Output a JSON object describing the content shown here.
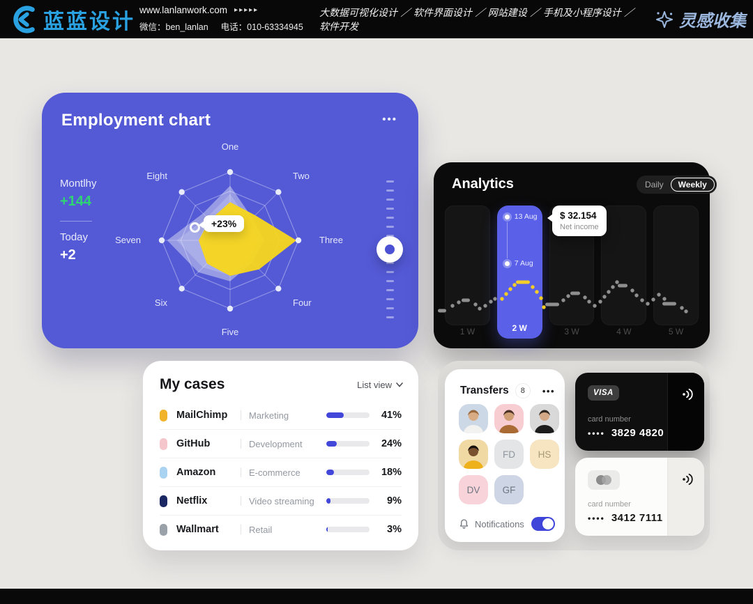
{
  "header": {
    "logo": "蓝蓝设计",
    "website": "www.lanlanwork.com",
    "wechat": "微信：ben_lanlan",
    "phone": "电话：010-63334945",
    "services": "大数据可视化设计 ／ 软件界面设计 ／ 网站建设 ／ 手机及小程序设计 ／ 软件开发",
    "collection": "灵感收集"
  },
  "icons": {
    "menu_dots": "•••",
    "arrows": "▸▸▸▸▸"
  },
  "colors": {
    "employment_card": "#545ad6",
    "accent_blue": "#4247da",
    "highlight_column": "#5a60e8",
    "yellow": "#f6d51f",
    "green": "#2fd573",
    "logo_blue": "#2aa2e2"
  },
  "employment": {
    "title": "Employment chart",
    "stats": [
      {
        "label": "Montlhy",
        "value": "+144",
        "value_color": "#2fd573"
      },
      {
        "label": "Today",
        "value": "+2",
        "value_color": "#ffffff"
      }
    ],
    "tooltip": "+23%"
  },
  "analytics": {
    "title": "Analytics",
    "toggle": {
      "options": [
        "Daily",
        "Weekly"
      ],
      "selected": "Weekly"
    },
    "tooltip": {
      "value": "$ 32.154",
      "label": "Net income"
    },
    "markers": [
      "13 Aug",
      "7 Aug"
    ],
    "weeks": [
      "1 W",
      "2 W",
      "3 W",
      "4 W",
      "5 W"
    ],
    "selected_week": "2 W"
  },
  "my_cases": {
    "title": "My cases",
    "view_label": "List view",
    "rows": [
      {
        "name": "MailChimp",
        "category": "Marketing",
        "percent": 41,
        "icon_color": "#f0b32a"
      },
      {
        "name": "GitHub",
        "category": "Development",
        "percent": 24,
        "icon_color": "#f5c7cd"
      },
      {
        "name": "Amazon",
        "category": "E-commerce",
        "percent": 18,
        "icon_color": "#a9d3f1"
      },
      {
        "name": "Netflix",
        "category": "Video streaming",
        "percent": 9,
        "icon_color": "#1b2762"
      },
      {
        "name": "Wallmart",
        "category": "Retail",
        "percent": 3,
        "icon_color": "#9aa1a9"
      }
    ]
  },
  "transfers": {
    "title": "Transfers",
    "badge": "8",
    "avatars": [
      {
        "type": "photo",
        "bg": "#cdd8e6",
        "hair": "#9a6a3f",
        "shirt": "#f2f2f0",
        "skin": "#d8ac85"
      },
      {
        "type": "photo",
        "bg": "#f7cdd2",
        "hair": "#4c3326",
        "shirt": "#a96a33",
        "skin": "#cf9e74"
      },
      {
        "type": "photo",
        "bg": "#d9d9d9",
        "hair": "#2e2620",
        "shirt": "#1c1c1c",
        "skin": "#d3a887"
      },
      {
        "type": "photo",
        "bg": "#f1d9a4",
        "hair": "#17120e",
        "shirt": "#eeb11c",
        "skin": "#7a512f"
      },
      {
        "type": "initials",
        "bg": "#e4e5e7",
        "label": "FD",
        "color": "#8f969e"
      },
      {
        "type": "initials",
        "bg": "#f7e5c2",
        "label": "HS",
        "color": "#a89a72"
      },
      {
        "type": "initials",
        "bg": "#f8d3da",
        "label": "DV",
        "color": "#6e7681"
      },
      {
        "type": "initials",
        "bg": "#ced5e4",
        "label": "GF",
        "color": "#6e7681"
      }
    ],
    "notifications_label": "Notifications",
    "notifications_on": true
  },
  "bank_cards": [
    {
      "brand": "VISA",
      "style": "dark",
      "label": "card number",
      "mask": "••••",
      "number": "3829 4820"
    },
    {
      "brand": "mastercard",
      "style": "light",
      "label": "card number",
      "mask": "••••",
      "number": "3412 7111"
    }
  ],
  "chart_data": [
    {
      "type": "radar",
      "title": "Employment chart",
      "axes": [
        "One",
        "Two",
        "Three",
        "Four",
        "Five",
        "Six",
        "Seven",
        "Eight"
      ],
      "rings": [
        1,
        0.72,
        0.45
      ],
      "max": 1,
      "series": [
        {
          "name": "secondary",
          "color": "rgba(233,235,246,0.45)",
          "values": [
            0.8,
            0.46,
            0.5,
            0.46,
            0.6,
            0.66,
            0.92,
            0.56
          ]
        },
        {
          "name": "primary",
          "color": "#f6d51f",
          "values": [
            0.56,
            0.52,
            0.97,
            0.6,
            0.52,
            0.48,
            0.46,
            0.42
          ]
        }
      ],
      "annotation": "+23%",
      "legend": "none",
      "grid": "octagon-web"
    },
    {
      "type": "line",
      "style": "dotted",
      "title": "Analytics",
      "categories": [
        "1 W",
        "2 W",
        "3 W",
        "4 W",
        "5 W"
      ],
      "highlight": "2 W",
      "markers": [
        "13 Aug",
        "7 Aug"
      ],
      "tooltip": {
        "value": "$ 32.154",
        "label": "Net income"
      },
      "point_colors": {
        "g": "#8f8f8f",
        "y": "#f4cd27"
      },
      "points": [
        [
          12,
          213,
          12,
          "g"
        ],
        [
          27,
          206,
          4,
          "g"
        ],
        [
          36,
          201,
          4,
          "g"
        ],
        [
          46,
          198,
          12,
          "g"
        ],
        [
          60,
          204,
          4,
          "g"
        ],
        [
          66,
          210,
          4,
          "g"
        ],
        [
          74,
          206,
          4,
          "g"
        ],
        [
          82,
          200,
          4,
          "g"
        ],
        [
          88,
          196,
          4,
          "g"
        ],
        [
          98,
          196,
          4,
          "y"
        ],
        [
          104,
          189,
          4,
          "y"
        ],
        [
          110,
          182,
          4,
          "y"
        ],
        [
          116,
          176,
          4,
          "y"
        ],
        [
          128,
          172,
          20,
          "y"
        ],
        [
          142,
          179,
          4,
          "y"
        ],
        [
          148,
          186,
          4,
          "y"
        ],
        [
          154,
          195,
          4,
          "y"
        ],
        [
          158,
          208,
          4,
          "y"
        ],
        [
          170,
          204,
          20,
          "g"
        ],
        [
          186,
          198,
          4,
          "g"
        ],
        [
          193,
          192,
          4,
          "g"
        ],
        [
          203,
          188,
          14,
          "g"
        ],
        [
          217,
          194,
          4,
          "g"
        ],
        [
          223,
          200,
          4,
          "g"
        ],
        [
          231,
          206,
          4,
          "g"
        ],
        [
          239,
          200,
          4,
          "g"
        ],
        [
          245,
          193,
          4,
          "g"
        ],
        [
          251,
          186,
          4,
          "g"
        ],
        [
          257,
          179,
          4,
          "g"
        ],
        [
          263,
          172,
          4,
          "g"
        ],
        [
          271,
          177,
          14,
          "g"
        ],
        [
          285,
          184,
          4,
          "g"
        ],
        [
          291,
          191,
          4,
          "g"
        ],
        [
          299,
          198,
          4,
          "g"
        ],
        [
          307,
          203,
          4,
          "g"
        ],
        [
          315,
          197,
          4,
          "g"
        ],
        [
          323,
          190,
          4,
          "g"
        ],
        [
          331,
          196,
          4,
          "g"
        ],
        [
          338,
          203,
          20,
          "g"
        ],
        [
          356,
          209,
          4,
          "g"
        ],
        [
          362,
          214,
          4,
          "g"
        ]
      ]
    },
    {
      "type": "bar",
      "title": "My cases",
      "categories": [
        "MailChimp",
        "GitHub",
        "Amazon",
        "Netflix",
        "Wallmart"
      ],
      "values": [
        41,
        24,
        18,
        9,
        3
      ],
      "unit": "%",
      "xlabel": "",
      "ylabel": "",
      "ylim": [
        0,
        100
      ]
    }
  ]
}
